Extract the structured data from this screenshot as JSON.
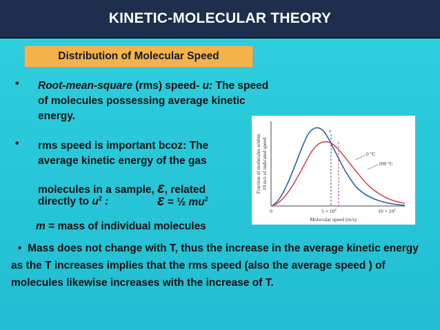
{
  "title": "KINETIC-MOLECULAR THEORY",
  "subtitle": "Distribution of Molecular Speed",
  "bullet_glyph": "•",
  "bullet1": {
    "italic": "Root-mean-square",
    "text": " (rms) speed- ",
    "italic_u": "u:",
    "rest": " The speed of molecules possessing average kinetic energy."
  },
  "bullet2": {
    "text": "rms speed is important bcoz: The average kinetic energy of the gas",
    "line_eps_pre": "molecules in a sample, ",
    "eps_symbol": "ε",
    "line_eps_post": ", related",
    "line_u2_pre": "directly to ",
    "line_u2_u": "u",
    "line_u2_sup": "2",
    "line_u2_post": " :",
    "formula_eps": "ε",
    "formula_eq": " = ½ ",
    "formula_mu": "mu",
    "formula_sup": "2",
    "m_italic": "m",
    "m_text": " = mass of individual molecules"
  },
  "bullet3": {
    "text": "Mass does not change with T, thus the increase in the average kinetic energy as the T increases implies that the rms speed (also the average speed ) of molecules likewise increases with the increase of T."
  },
  "graph": {
    "ylabel_line1": "Fraction of molecules within",
    "ylabel_line2": "10 m/s of indicated speed",
    "xlabel": "Molecular speed (m/s)",
    "tick_0": "0",
    "tick_mid": "5 × 10",
    "tick_mid_sup": "2",
    "tick_max": "10 × 10",
    "tick_max_sup": "2",
    "marker_u": "u",
    "label_0c": "0 °C",
    "label_100c": "100 °C",
    "color_0c": "#2b5fa3",
    "color_100c": "#d8464a"
  }
}
